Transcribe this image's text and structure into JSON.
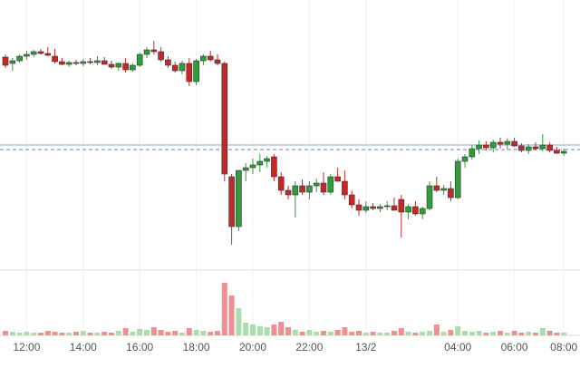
{
  "chart_data": {
    "type": "candlestick",
    "categories": [
      null,
      null,
      null,
      "12:00",
      null,
      null,
      null,
      null,
      null,
      null,
      null,
      "14:00",
      null,
      null,
      null,
      null,
      null,
      null,
      null,
      "16:00",
      null,
      null,
      null,
      null,
      null,
      null,
      null,
      "18:00",
      null,
      null,
      null,
      null,
      null,
      null,
      null,
      "20:00",
      null,
      null,
      null,
      null,
      null,
      null,
      null,
      "22:00",
      null,
      null,
      null,
      null,
      null,
      null,
      null,
      "13/2",
      null,
      null,
      null,
      null,
      null,
      null,
      null,
      null,
      null,
      null,
      null,
      null,
      "04:00",
      null,
      null,
      null,
      null,
      null,
      null,
      null,
      "06:00",
      null,
      null,
      null,
      null,
      null,
      null,
      "08:00"
    ],
    "open": [
      237,
      230,
      233,
      238,
      240,
      243,
      241,
      238,
      232,
      229,
      231,
      230,
      232,
      231,
      233,
      229,
      226,
      230,
      223,
      228,
      240,
      245,
      243,
      234,
      228,
      222,
      230,
      210,
      233,
      238,
      234,
      230,
      105,
      50,
      112,
      115,
      118,
      122,
      127,
      105,
      90,
      85,
      95,
      88,
      95,
      98,
      88,
      105,
      100,
      85,
      74,
      68,
      72,
      70,
      72,
      73,
      80,
      66,
      72,
      64,
      70,
      95,
      90,
      92,
      82,
      122,
      127,
      136,
      140,
      137,
      143,
      141,
      144,
      139,
      134,
      138,
      136,
      140,
      134,
      131
    ],
    "high": [
      240,
      236,
      240,
      244,
      245,
      246,
      248,
      246,
      236,
      233,
      234,
      235,
      236,
      238,
      237,
      233,
      231,
      236,
      230,
      242,
      248,
      255,
      248,
      238,
      232,
      233,
      236,
      235,
      240,
      244,
      240,
      232,
      108,
      110,
      120,
      125,
      130,
      128,
      130,
      110,
      95,
      100,
      102,
      100,
      103,
      110,
      108,
      115,
      112,
      90,
      80,
      78,
      76,
      75,
      78,
      82,
      85,
      75,
      78,
      72,
      100,
      105,
      96,
      100,
      125,
      130,
      140,
      145,
      144,
      146,
      148,
      147,
      148,
      142,
      141,
      143,
      152,
      143,
      138,
      136
    ],
    "low": [
      225,
      222,
      231,
      234,
      237,
      240,
      238,
      230,
      228,
      226,
      228,
      227,
      229,
      228,
      230,
      224,
      222,
      220,
      221,
      226,
      236,
      240,
      232,
      225,
      220,
      218,
      205,
      206,
      228,
      232,
      228,
      100,
      30,
      45,
      100,
      108,
      110,
      115,
      100,
      85,
      80,
      60,
      85,
      80,
      88,
      85,
      85,
      100,
      80,
      70,
      62,
      65,
      68,
      66,
      68,
      70,
      38,
      58,
      62,
      58,
      68,
      88,
      85,
      78,
      80,
      115,
      124,
      130,
      134,
      132,
      136,
      135,
      138,
      132,
      130,
      134,
      133,
      132,
      130,
      128
    ],
    "close": [
      228,
      233,
      238,
      240,
      243,
      241,
      239,
      232,
      229,
      231,
      230,
      232,
      231,
      233,
      229,
      226,
      230,
      223,
      228,
      240,
      245,
      243,
      234,
      228,
      222,
      230,
      210,
      233,
      238,
      234,
      230,
      108,
      50,
      112,
      115,
      118,
      122,
      125,
      105,
      90,
      85,
      95,
      88,
      95,
      98,
      88,
      105,
      100,
      85,
      74,
      68,
      72,
      70,
      72,
      73,
      68,
      66,
      72,
      64,
      70,
      95,
      90,
      92,
      82,
      122,
      127,
      136,
      140,
      137,
      143,
      141,
      144,
      139,
      134,
      138,
      136,
      140,
      134,
      131,
      133
    ],
    "volume": [
      5,
      4,
      3,
      4,
      3,
      3,
      5,
      4,
      3,
      3,
      4,
      5,
      3,
      3,
      4,
      3,
      5,
      8,
      4,
      7,
      6,
      9,
      6,
      4,
      5,
      3,
      8,
      6,
      5,
      4,
      5,
      58,
      44,
      30,
      14,
      12,
      10,
      9,
      12,
      15,
      9,
      6,
      4,
      6,
      4,
      5,
      4,
      6,
      9,
      4,
      5,
      3,
      4,
      3,
      3,
      5,
      8,
      4,
      3,
      4,
      5,
      12,
      4,
      6,
      10,
      5,
      4,
      5,
      3,
      4,
      5,
      3,
      5,
      3,
      4,
      3,
      8,
      5,
      3,
      3
    ],
    "ylim": [
      0,
      300
    ],
    "volume_lim": [
      0,
      65
    ],
    "price_line": 140,
    "last_price": 135,
    "up_color": "#2e9e3a",
    "down_color": "#c62828",
    "volume_up_color": "#a9dcae",
    "volume_down_color": "#ef8f92",
    "grid": true
  }
}
